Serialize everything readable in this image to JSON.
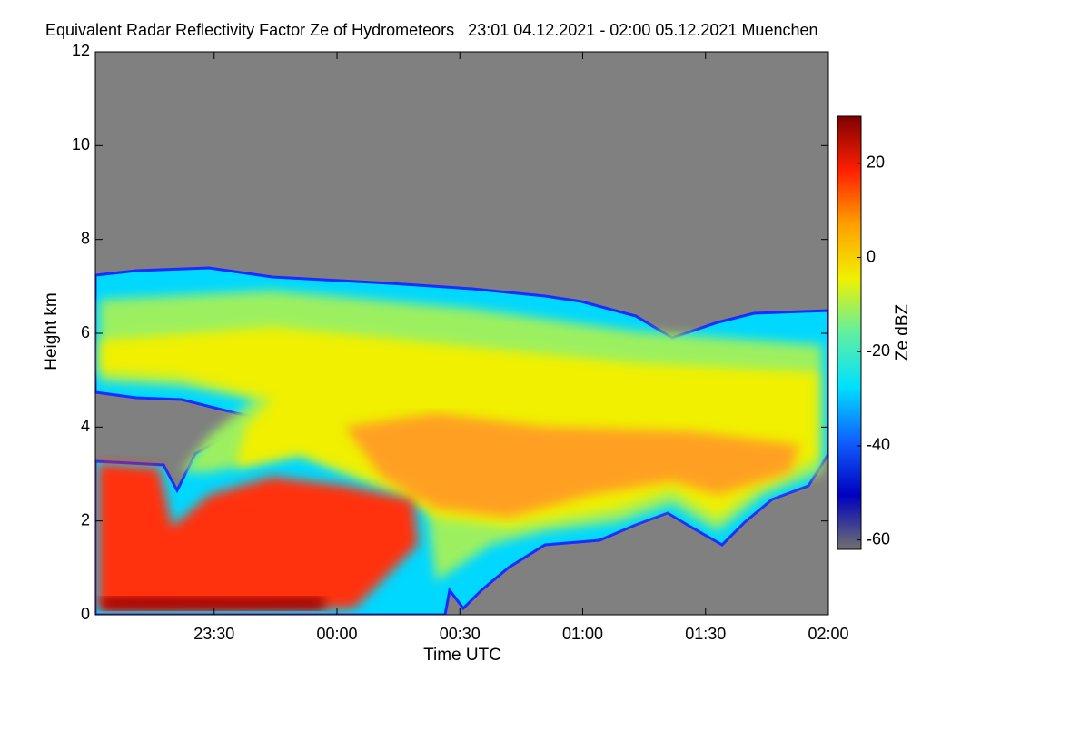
{
  "chart_data": {
    "type": "heatmap",
    "title": "Equivalent Radar Reflectivity Factor Ze of Hydrometeors   23:01 04.12.2021 - 02:00 05.12.2021 Muenchen",
    "x_label": "Time UTC",
    "y_label": "Height km",
    "xlim": [
      1381,
      1560
    ],
    "xticks": [
      {
        "value": 1410,
        "label": "23:30"
      },
      {
        "value": 1440,
        "label": "00:00"
      },
      {
        "value": 1470,
        "label": "00:30"
      },
      {
        "value": 1500,
        "label": "01:00"
      },
      {
        "value": 1530,
        "label": "01:30"
      },
      {
        "value": 1560,
        "label": "02:00"
      }
    ],
    "ylim": [
      0,
      12
    ],
    "yticks": [
      0,
      2,
      4,
      6,
      8,
      10,
      12
    ],
    "colorbar": {
      "label": "Ze dBZ",
      "lim": [
        -62,
        30
      ],
      "ticks": [
        -60,
        -40,
        -20,
        0,
        20
      ],
      "colors": [
        "#707070",
        "#0000c0",
        "#1060ff",
        "#00e0ff",
        "#60f0a0",
        "#f0f000",
        "#ffa000",
        "#ff2000",
        "#800000"
      ]
    }
  }
}
